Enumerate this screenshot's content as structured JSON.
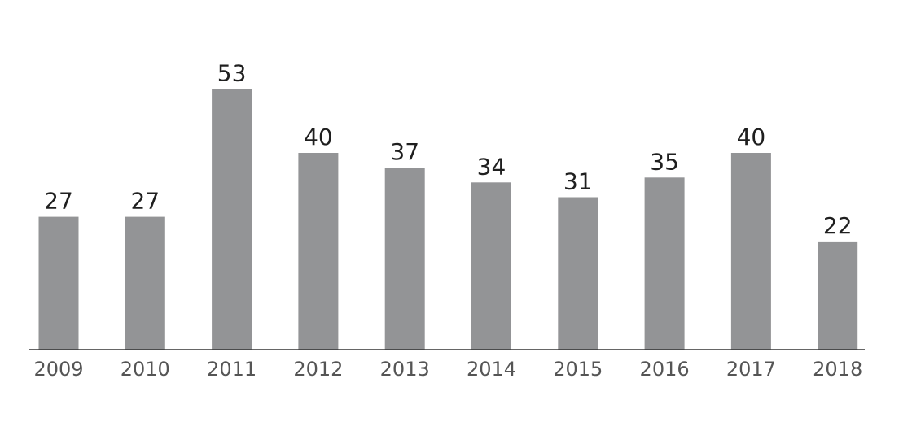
{
  "chart_data": {
    "type": "bar",
    "categories": [
      "2009",
      "2010",
      "2011",
      "2012",
      "2013",
      "2014",
      "2015",
      "2016",
      "2017",
      "2018"
    ],
    "values": [
      27,
      27,
      53,
      40,
      37,
      34,
      31,
      35,
      40,
      22
    ],
    "value_labels": [
      "27",
      "27",
      "53",
      "40",
      "37",
      "34",
      "31",
      "35",
      "40",
      "22"
    ],
    "ylim": [
      0,
      60
    ],
    "grid": false,
    "legend": "none",
    "colors": {
      "bar": "#939496",
      "value_text": "#1f1f1f",
      "tick_text": "#555555",
      "axis": "#333333"
    }
  }
}
